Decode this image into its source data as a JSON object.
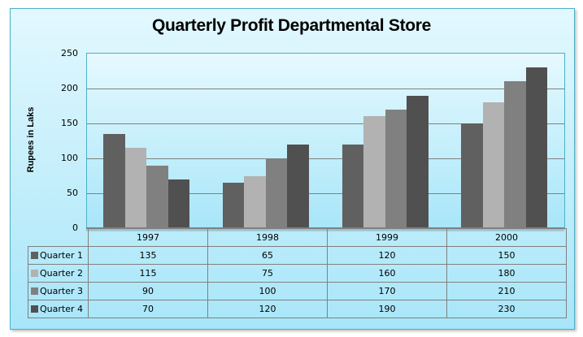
{
  "chart_data": {
    "type": "bar",
    "title": "Quarterly Profit Departmental Store",
    "xlabel": "",
    "ylabel": "Rupees in Laks",
    "ylim": [
      0,
      250
    ],
    "yticks": [
      "0",
      "50",
      "100",
      "150",
      "200",
      "250"
    ],
    "grid": true,
    "legend_position": "data-table",
    "categories": [
      "1997",
      "1998",
      "1999",
      "2000"
    ],
    "series": [
      {
        "name": "Quarter 1",
        "color": "#606060",
        "values": [
          135,
          65,
          120,
          150
        ]
      },
      {
        "name": "Quarter 2",
        "color": "#b2b2b2",
        "values": [
          115,
          75,
          160,
          180
        ]
      },
      {
        "name": "Quarter 3",
        "color": "#808080",
        "values": [
          90,
          100,
          170,
          210
        ]
      },
      {
        "name": "Quarter 4",
        "color": "#505050",
        "values": [
          70,
          120,
          190,
          230
        ]
      }
    ]
  }
}
